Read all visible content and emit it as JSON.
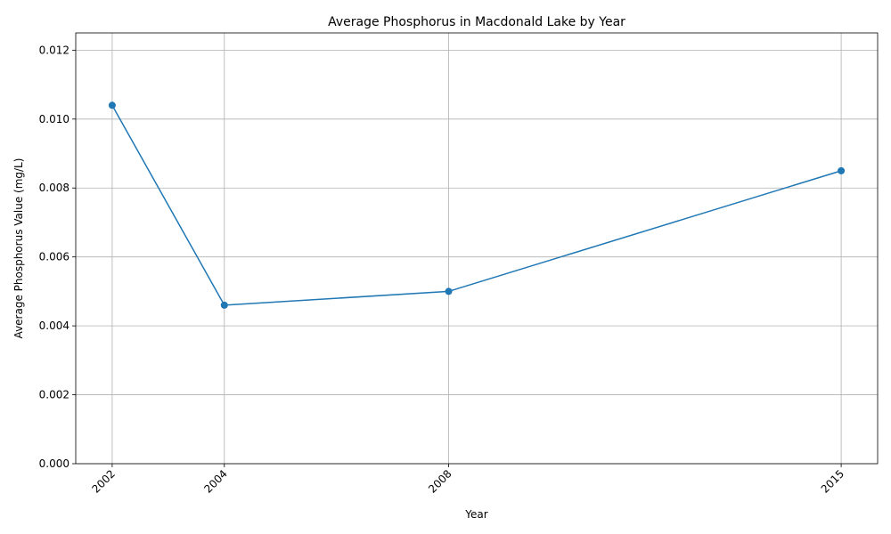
{
  "chart_data": {
    "type": "line",
    "title": "Average Phosphorus in Macdonald Lake by Year",
    "xlabel": "Year",
    "ylabel": "Average Phosphorus Value (mg/L)",
    "x": [
      2002,
      2004,
      2008,
      2015
    ],
    "x_tick_labels": [
      "2002",
      "2004",
      "2008",
      "2015"
    ],
    "series": [
      {
        "values": [
          0.0104,
          0.0046,
          0.005,
          0.0085
        ],
        "color": "#1f77b4",
        "marker": "circle"
      }
    ],
    "xlim": [
      2001.35,
      2015.65
    ],
    "ylim": [
      0,
      0.0125
    ],
    "y_ticks": [
      0.0,
      0.002,
      0.004,
      0.006,
      0.008,
      0.01,
      0.012
    ],
    "y_tick_labels": [
      "0.000",
      "0.002",
      "0.004",
      "0.006",
      "0.008",
      "0.010",
      "0.012"
    ],
    "grid": true,
    "legend": "none"
  }
}
